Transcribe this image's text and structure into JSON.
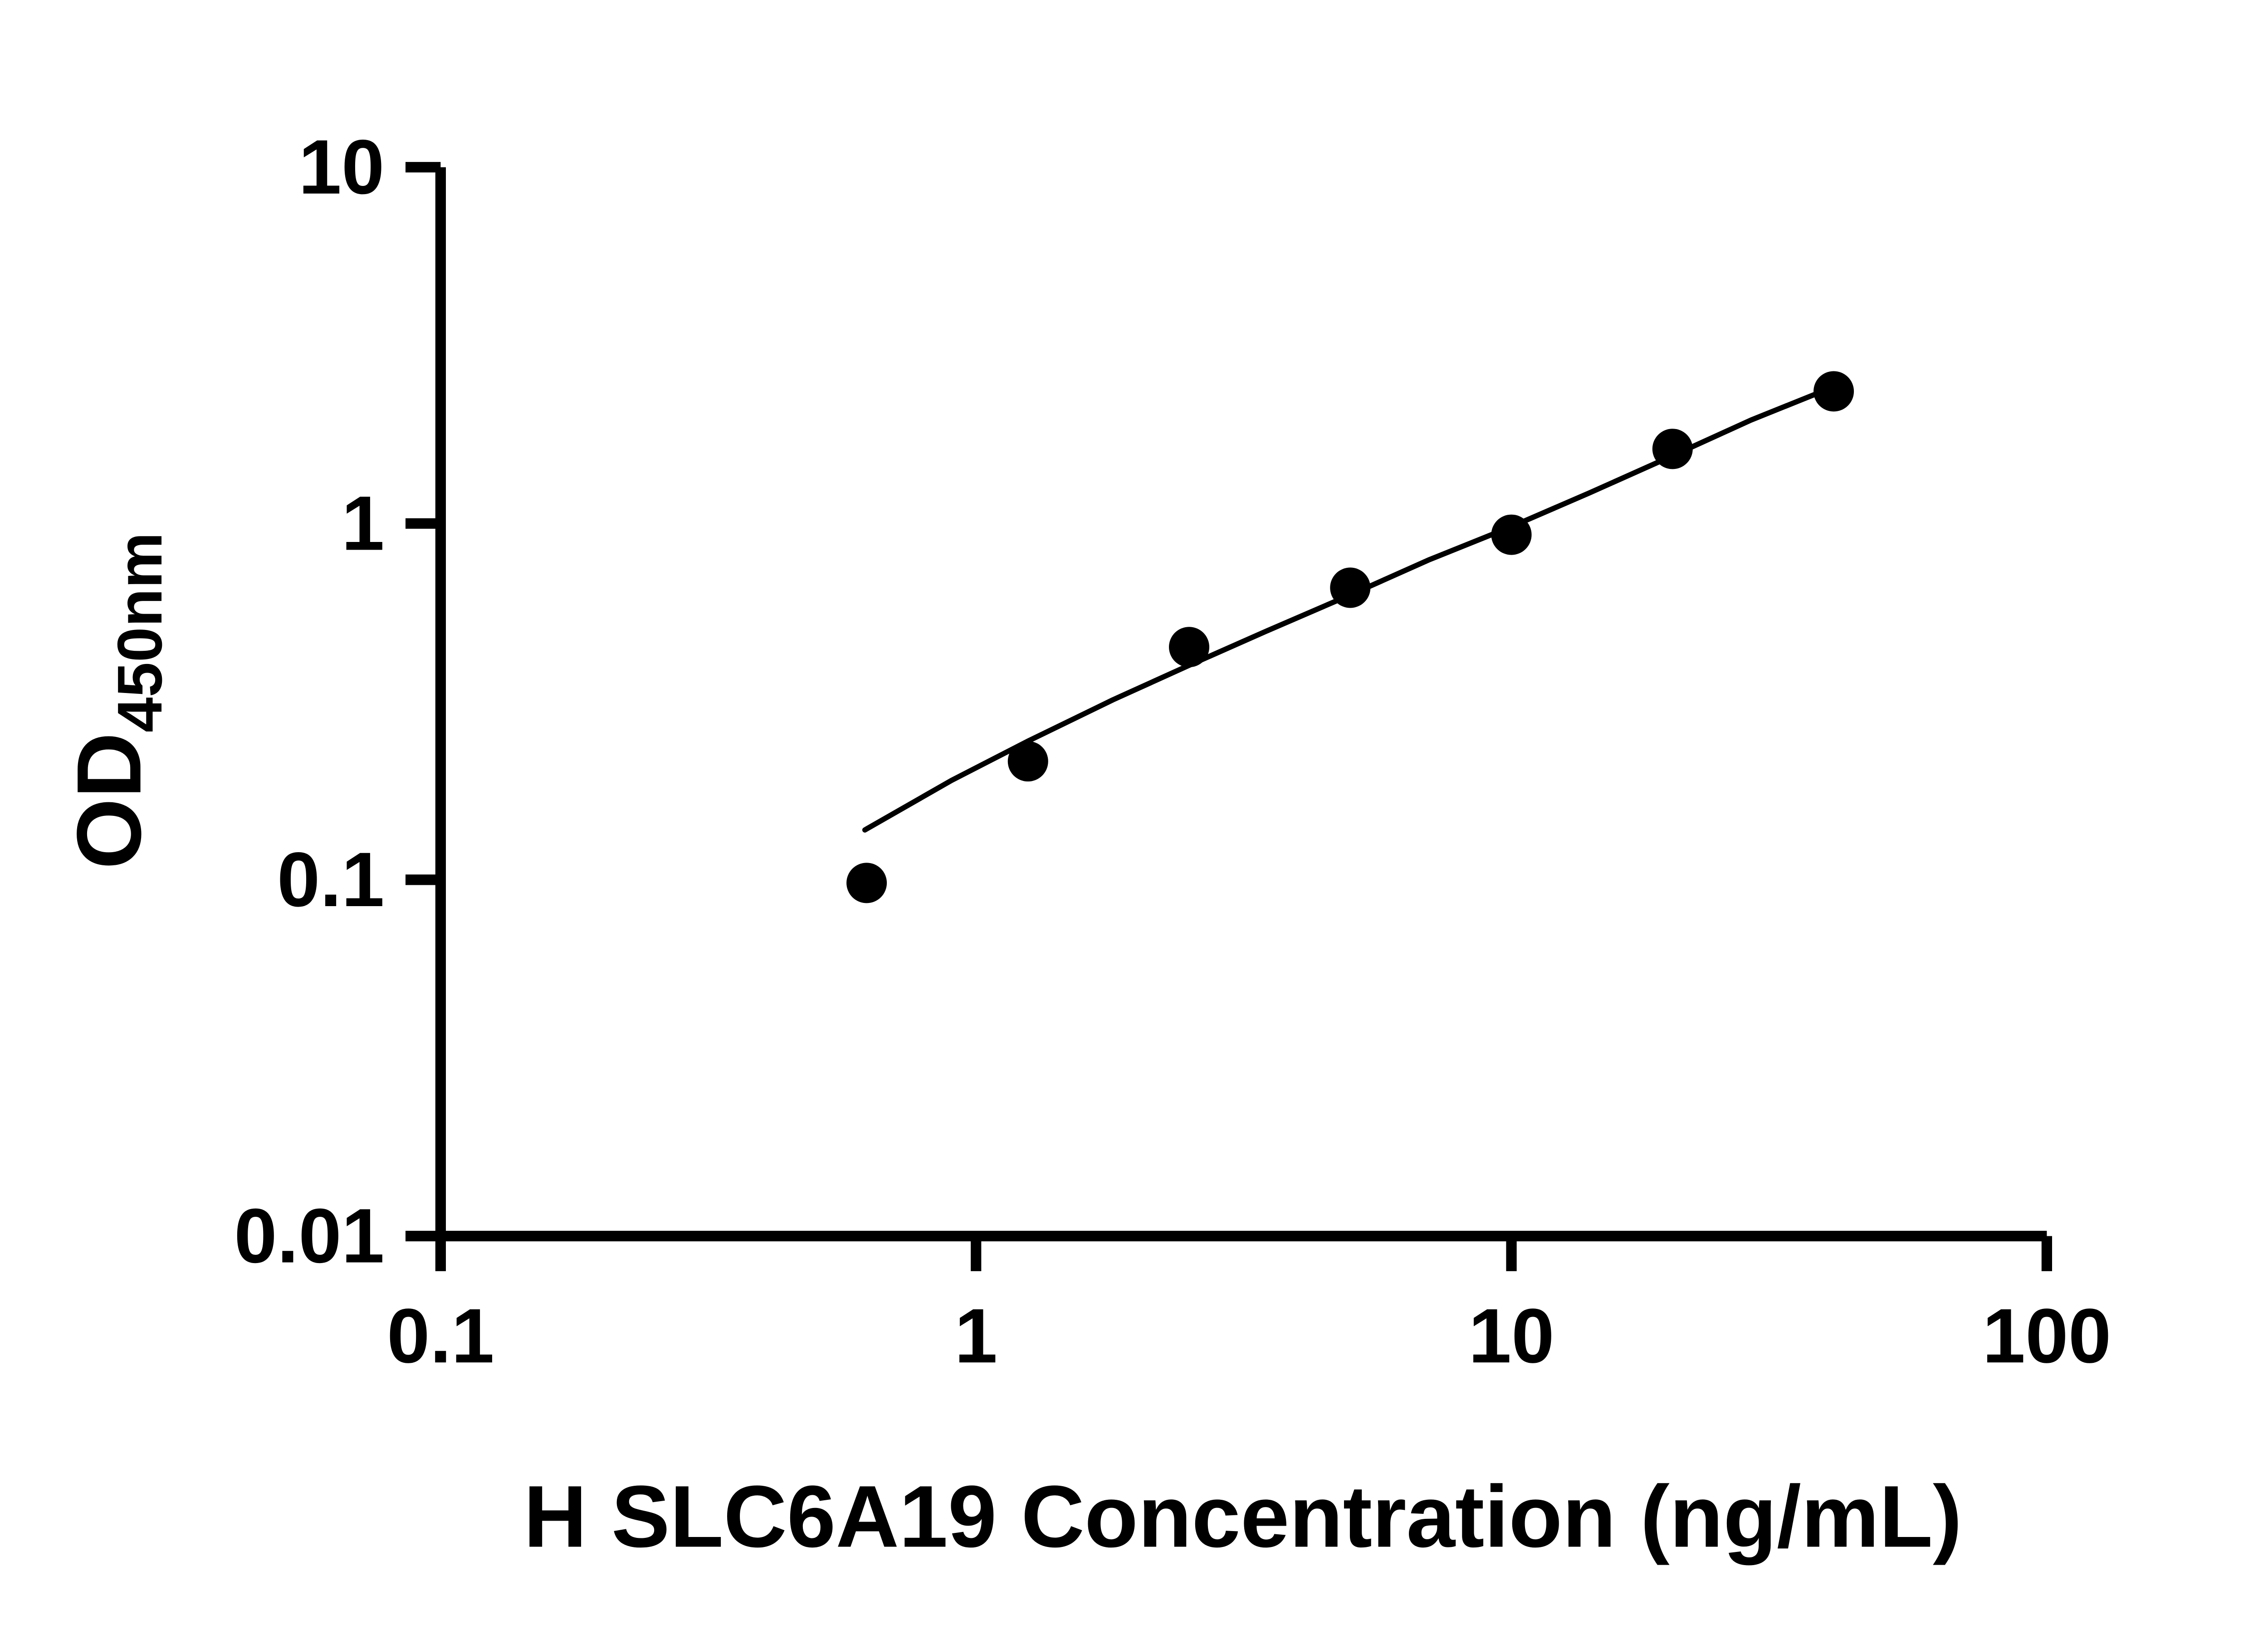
{
  "chart_data": {
    "type": "scatter",
    "xlabel": "H SLC6A19 Concentration (ng/mL)",
    "ylabel_main": "OD",
    "ylabel_sub": "450nm",
    "x_scale": "log",
    "y_scale": "log",
    "xlim": [
      0.1,
      100
    ],
    "ylim": [
      0.01,
      10
    ],
    "grid": false,
    "legend": "none",
    "x_ticks": [
      {
        "v": 0.1,
        "label": "0.1"
      },
      {
        "v": 1,
        "label": "1"
      },
      {
        "v": 10,
        "label": "10"
      },
      {
        "v": 100,
        "label": "100"
      }
    ],
    "y_ticks": [
      {
        "v": 0.01,
        "label": "0.01"
      },
      {
        "v": 0.1,
        "label": "0.1"
      },
      {
        "v": 1,
        "label": "1"
      },
      {
        "v": 10,
        "label": "10"
      }
    ],
    "series": [
      {
        "marker": "circle",
        "color": "#000000",
        "points": [
          {
            "x": 0.625,
            "y": 0.098
          },
          {
            "x": 1.25,
            "y": 0.215
          },
          {
            "x": 2.5,
            "y": 0.45
          },
          {
            "x": 5,
            "y": 0.66
          },
          {
            "x": 10,
            "y": 0.93
          },
          {
            "x": 20,
            "y": 1.62
          },
          {
            "x": 40,
            "y": 2.35
          }
        ]
      }
    ],
    "trend_line": {
      "color": "#000000",
      "points": [
        {
          "x": 0.62,
          "y": 0.138
        },
        {
          "x": 0.9,
          "y": 0.19
        },
        {
          "x": 1.25,
          "y": 0.245
        },
        {
          "x": 1.8,
          "y": 0.32
        },
        {
          "x": 2.5,
          "y": 0.4
        },
        {
          "x": 3.5,
          "y": 0.5
        },
        {
          "x": 5,
          "y": 0.63
        },
        {
          "x": 7,
          "y": 0.79
        },
        {
          "x": 10,
          "y": 0.98
        },
        {
          "x": 14,
          "y": 1.22
        },
        {
          "x": 20,
          "y": 1.55
        },
        {
          "x": 28,
          "y": 1.95
        },
        {
          "x": 40,
          "y": 2.42
        }
      ]
    },
    "colors": {
      "background": "#ffffff",
      "axis": "#000000",
      "marker": "#000000",
      "trend": "#000000"
    }
  }
}
